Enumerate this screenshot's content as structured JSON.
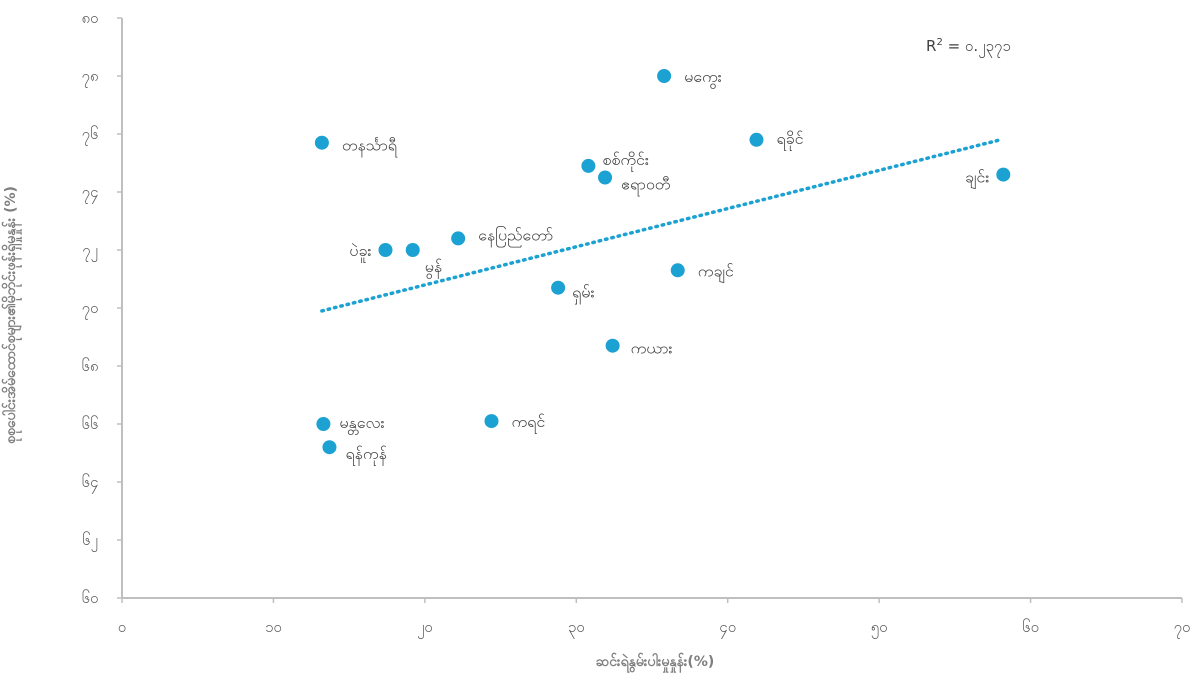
{
  "chart_data": {
    "type": "scatter",
    "xlabel": "ဆင်းရဲနွမ်းပါးမှုနှုန်း(%)",
    "ylabel": "စုစုပေါင်းအိမ်ထောင်စုများ၏မိုဘိုင်းဖုန်းရှိမှုနှုန်း (%)",
    "xlim": [
      0,
      70
    ],
    "ylim": [
      60,
      80
    ],
    "x_ticks": [
      0,
      10,
      20,
      30,
      40,
      50,
      60,
      70
    ],
    "y_ticks": [
      60,
      62,
      64,
      66,
      68,
      70,
      72,
      74,
      76,
      78,
      80
    ],
    "x_tick_labels": [
      "၀",
      "၁၀",
      "၂၀",
      "၃၀",
      "၄၀",
      "၅၀",
      "၆၀",
      "၇၀"
    ],
    "y_tick_labels": [
      "၆၀",
      "၆၂",
      "၆၄",
      "၆၆",
      "၆၈",
      "၇၀",
      "၇၂",
      "၇၄",
      "၇၆",
      "၇၈",
      "၈၀"
    ],
    "grid": false,
    "point_color": "#1BA1D2",
    "trend_color": "#1BA1D2",
    "axis_color": "#BFBFBF",
    "points": [
      {
        "label": "မကွေး",
        "x": 35.8,
        "y": 78.0
      },
      {
        "label": "ရခိုင်",
        "x": 41.9,
        "y": 75.8
      },
      {
        "label": "တနင်္သာရီ",
        "x": 13.2,
        "y": 75.7
      },
      {
        "label": "စစ်ကိုင်း",
        "x": 30.8,
        "y": 74.9
      },
      {
        "label": "ဧရာဝတီ",
        "x": 31.9,
        "y": 74.5
      },
      {
        "label": "ချင်း",
        "x": 58.2,
        "y": 74.6
      },
      {
        "label": "နေပြည်တော်",
        "x": 22.2,
        "y": 72.4
      },
      {
        "label": "ပဲခူး",
        "x": 17.4,
        "y": 72.0
      },
      {
        "label": "မွန်",
        "x": 19.2,
        "y": 72.0
      },
      {
        "label": "ကချင်",
        "x": 36.7,
        "y": 71.3
      },
      {
        "label": "ရှမ်း",
        "x": 28.8,
        "y": 70.7
      },
      {
        "label": "ကယား",
        "x": 32.4,
        "y": 68.7
      },
      {
        "label": "မန္တလေး",
        "x": 13.3,
        "y": 66.0
      },
      {
        "label": "ကရင်",
        "x": 24.4,
        "y": 66.1
      },
      {
        "label": "ရန်ကုန်",
        "x": 13.7,
        "y": 65.2
      }
    ],
    "trendline": {
      "style": "dotted",
      "x": [
        13.2,
        58.0
      ],
      "y": [
        69.9,
        75.8
      ]
    },
    "annotation": {
      "r2_prefix": "R",
      "r2_sup": "2",
      "r2_rest": " = ၀.၂၃၇၁"
    }
  }
}
